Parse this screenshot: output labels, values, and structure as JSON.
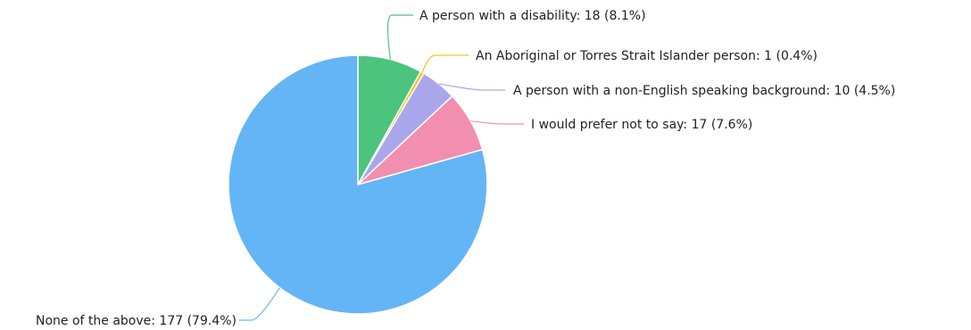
{
  "chart_data": {
    "type": "pie",
    "title": "",
    "slices": [
      {
        "label": "A person with a disability",
        "value": 18,
        "percent": 8.1,
        "display": "A person with a disability: 18 (8.1%)",
        "color": "#4cc47d"
      },
      {
        "label": "An Aboriginal or Torres Strait Islander person",
        "value": 1,
        "percent": 0.4,
        "display": "An Aboriginal or Torres Strait Islander person: 1 (0.4%)",
        "color": "#f0c419"
      },
      {
        "label": "A person with a non-English speaking background",
        "value": 10,
        "percent": 4.5,
        "display": "A person with a non-English speaking background: 10 (4.5%)",
        "color": "#a9a6ec"
      },
      {
        "label": "I would prefer not to say",
        "value": 17,
        "percent": 7.6,
        "display": "I would prefer not to say: 17 (7.6%)",
        "color": "#f28fb0"
      },
      {
        "label": "None of the above",
        "value": 177,
        "percent": 79.4,
        "display": "None of the above: 177 (79.4%)",
        "color": "#64b5f6"
      }
    ],
    "start_angle": "12 o'clock",
    "direction": "clockwise",
    "legend": "none",
    "labels": "outside with leader lines"
  }
}
